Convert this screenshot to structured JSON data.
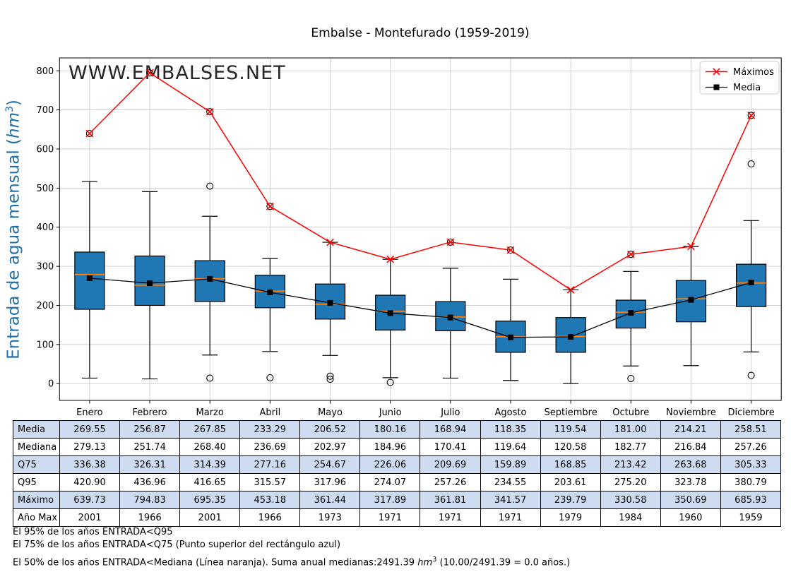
{
  "title": "Embalse - Montefurado (1959-2019)",
  "watermark": "WWW.EMBALSES.NET",
  "y_axis": {
    "prefix": "Entrada de agua mensual (",
    "unit": "hm",
    "sup": "3",
    "suffix": ")"
  },
  "legend": {
    "maximos": "Máximos",
    "media": "Media"
  },
  "colors": {
    "box_fill": "#1f77b4",
    "median_line": "#ff7f0e",
    "maximos_line": "#ff0000",
    "media_line": "#000000",
    "grid": "#cccccc",
    "spine": "#000000",
    "table_row_fill": "#cddcf0",
    "ylabel": "#1f6fa8",
    "watermark": "#74a3cb",
    "legend_border": "#cbcbcb"
  },
  "chart_data": {
    "type": "boxplot+lines",
    "title": "Embalse - Montefurado (1959-2019)",
    "ylabel": "Entrada de agua mensual (hm³)",
    "categories": [
      "Enero",
      "Febrero",
      "Marzo",
      "Abril",
      "Mayo",
      "Junio",
      "Julio",
      "Agosto",
      "Septiembre",
      "Octubre",
      "Noviembre",
      "Diciembre"
    ],
    "ylim": [
      -43,
      833
    ],
    "yticks": [
      0,
      100,
      200,
      300,
      400,
      500,
      600,
      700,
      800
    ],
    "grid": true,
    "legend_position": "upper right",
    "series": [
      {
        "name": "Máximos",
        "type": "line",
        "marker": "x",
        "color": "#ff0000",
        "values": [
          639.73,
          794.83,
          695.35,
          453.18,
          361.44,
          317.89,
          361.81,
          341.57,
          239.79,
          330.58,
          350.69,
          685.93
        ]
      },
      {
        "name": "Media",
        "type": "line",
        "marker": "square",
        "color": "#000000",
        "values": [
          269.55,
          256.87,
          267.85,
          233.29,
          206.52,
          180.16,
          168.94,
          118.35,
          119.54,
          181.0,
          214.21,
          258.51
        ]
      }
    ],
    "boxplot": {
      "median": [
        279.13,
        251.74,
        268.4,
        236.69,
        202.97,
        184.96,
        170.41,
        119.64,
        120.58,
        182.77,
        216.84,
        257.26
      ],
      "q3": [
        336.38,
        326.31,
        314.39,
        277.16,
        254.67,
        226.06,
        209.69,
        159.89,
        168.85,
        213.42,
        263.68,
        305.33
      ],
      "q1_estimated": [
        190,
        200,
        210,
        194,
        165,
        137,
        135,
        80,
        80,
        142,
        158,
        197
      ],
      "whisker_high_estimated": [
        517,
        491,
        428,
        320,
        361.44,
        317.89,
        295,
        267,
        239.79,
        287,
        350.69,
        417
      ],
      "whisker_low_estimated": [
        14,
        12,
        73,
        82,
        72,
        15,
        14,
        8,
        0,
        45,
        46,
        81
      ],
      "outliers_high": [
        [
          639.73
        ],
        [
          794.83
        ],
        [
          505,
          695.35
        ],
        [
          453.18
        ],
        [],
        [],
        [
          361.81
        ],
        [
          341.57
        ],
        [],
        [
          330.58
        ],
        [],
        [
          562,
          685.93
        ]
      ],
      "outliers_low_estimated": [
        [],
        [],
        [
          14
        ],
        [
          15
        ],
        [
          19,
          11
        ],
        [
          3
        ],
        [],
        [],
        [],
        [
          13
        ],
        [],
        [
          21
        ]
      ]
    }
  },
  "table": {
    "row_labels": [
      "Media",
      "Mediana",
      "Q75",
      "Q95",
      "Máximo",
      "Año Max"
    ],
    "rows": [
      [
        "269.55",
        "256.87",
        "267.85",
        "233.29",
        "206.52",
        "180.16",
        "168.94",
        "118.35",
        "119.54",
        "181.00",
        "214.21",
        "258.51"
      ],
      [
        "279.13",
        "251.74",
        "268.40",
        "236.69",
        "202.97",
        "184.96",
        "170.41",
        "119.64",
        "120.58",
        "182.77",
        "216.84",
        "257.26"
      ],
      [
        "336.38",
        "326.31",
        "314.39",
        "277.16",
        "254.67",
        "226.06",
        "209.69",
        "159.89",
        "168.85",
        "213.42",
        "263.68",
        "305.33"
      ],
      [
        "420.90",
        "436.96",
        "416.65",
        "315.57",
        "317.96",
        "274.07",
        "257.26",
        "234.55",
        "203.61",
        "275.20",
        "323.78",
        "380.79"
      ],
      [
        "639.73",
        "794.83",
        "695.35",
        "453.18",
        "361.44",
        "317.89",
        "361.81",
        "341.57",
        "239.79",
        "330.58",
        "350.69",
        "685.93"
      ],
      [
        "2001",
        "1966",
        "2001",
        "1966",
        "1973",
        "1971",
        "1971",
        "1971",
        "1979",
        "1984",
        "1960",
        "1959"
      ]
    ]
  },
  "footnotes": {
    "line1": "El 95% de los años ENTRADA<Q95",
    "line2": "El 75% de los años ENTRADA<Q75 (Punto superior del rectángulo azul)",
    "line3_prefix": "El 50% de los años ENTRADA<Mediana (Línea naranja). Suma anual medianas:2491.39 ",
    "line3_unit": "hm",
    "line3_sup": "3",
    "line3_suffix": " (10.00/2491.39 = 0.0 años.)"
  }
}
